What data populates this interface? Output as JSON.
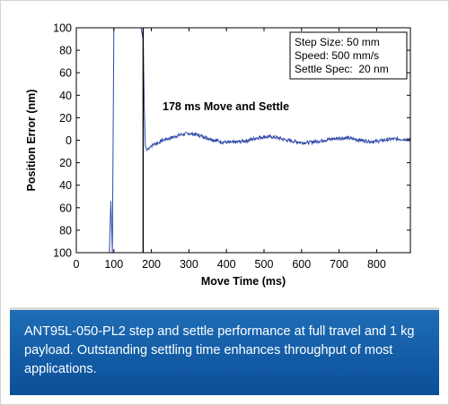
{
  "chart_data": {
    "type": "line",
    "xlabel": "Move Time (ms)",
    "ylabel": "Position Error (nm)",
    "xlim": [
      0,
      890
    ],
    "ylim": [
      -100,
      100
    ],
    "xticks": [
      0,
      100,
      200,
      300,
      400,
      500,
      600,
      700,
      800
    ],
    "yticks": [
      100,
      80,
      60,
      40,
      20,
      0,
      20,
      40,
      60,
      80,
      100
    ],
    "annotation": "178 ms Move and Settle",
    "legend_lines": [
      "Step Size: 50 mm",
      "Speed: 500 mm/s",
      "Settle Spec:  20 nm"
    ],
    "legend_position": "top-right",
    "grid": false,
    "colors": {
      "signal": "#3049a8",
      "marker": "#000000"
    },
    "series": [
      {
        "x": [
          0,
          85,
          88,
          92,
          96,
          100,
          103,
          106,
          109,
          112,
          118,
          124,
          130,
          136,
          142,
          148,
          154,
          160,
          166,
          172,
          178,
          181,
          184,
          188,
          192,
          196,
          200,
          210,
          220,
          230,
          240,
          260,
          280,
          300,
          320,
          340,
          360,
          380,
          400,
          420,
          440,
          460,
          480,
          500,
          520,
          540,
          560,
          580,
          600,
          620,
          640,
          660,
          680,
          700,
          720,
          740,
          760,
          780,
          800,
          820,
          840,
          860,
          880,
          890
        ],
        "y": [
          -100,
          -100,
          -100,
          -54,
          -100,
          100,
          100,
          100,
          100,
          100,
          100,
          100,
          100,
          100,
          100,
          100,
          100,
          100,
          100,
          100,
          90,
          30,
          -5,
          -9,
          -7,
          -6,
          -5,
          -3,
          -2,
          0,
          1,
          3,
          5,
          6,
          5,
          3,
          1,
          -1,
          -2,
          -2,
          -1,
          0,
          2,
          3,
          3,
          2,
          0,
          -1,
          -2,
          -2,
          -1,
          0,
          1,
          2,
          2,
          1,
          0,
          -1,
          -1,
          0,
          1,
          1,
          1,
          1
        ]
      }
    ]
  },
  "caption": {
    "text": "ANT95L-050-PL2 step and settle performance at full travel and 1 kg payload. Outstanding settling time enhances throughput of most applications."
  }
}
